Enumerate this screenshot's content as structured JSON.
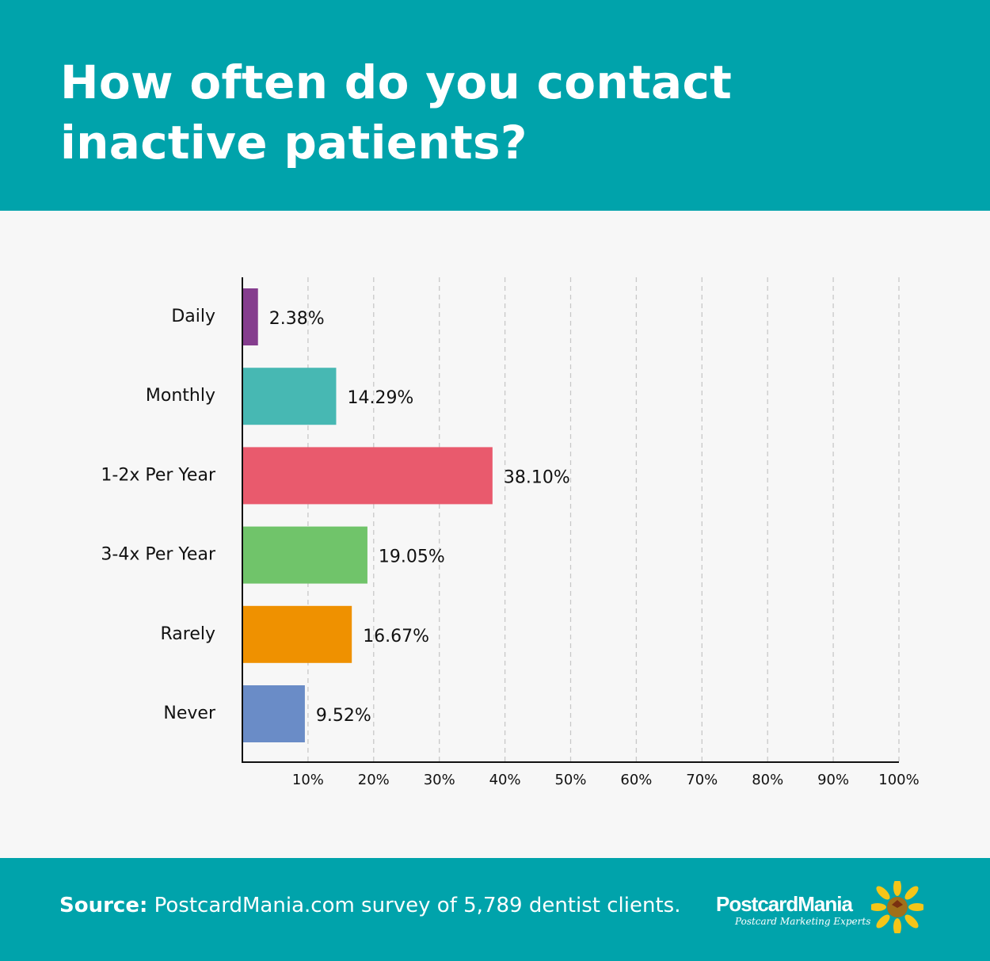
{
  "header": {
    "title": "How often do you contact inactive patients?"
  },
  "chart_data": {
    "type": "bar",
    "orientation": "horizontal",
    "title": "How often do you contact inactive patients?",
    "categories": [
      "Daily",
      "Monthly",
      "1-2x Per Year",
      "3-4x Per Year",
      "Rarely",
      "Never"
    ],
    "values": [
      2.38,
      14.29,
      38.1,
      19.05,
      16.67,
      9.52
    ],
    "data_labels": [
      "2.38%",
      "14.29%",
      "38.10%",
      "19.05%",
      "16.67%",
      "9.52%"
    ],
    "colors": [
      "#853d8e",
      "#47b8b3",
      "#e95a6d",
      "#70c46a",
      "#ef9100",
      "#6a8cc7"
    ],
    "xlim": [
      0,
      100
    ],
    "x_ticks": [
      10,
      20,
      30,
      40,
      50,
      60,
      70,
      80,
      90,
      100
    ],
    "x_tick_labels": [
      "10%",
      "20%",
      "30%",
      "40%",
      "50%",
      "60%",
      "70%",
      "80%",
      "90%",
      "100%"
    ],
    "grid": "vertical dashed",
    "xlabel": "",
    "ylabel": ""
  },
  "footer": {
    "source_label": "Source:",
    "source_text": " PostcardMania.com survey of 5,789 dentist clients.",
    "logo_name": "PostcardMania",
    "logo_tagline": "Postcard Marketing Experts"
  },
  "colors": {
    "brand": "#00a3ab",
    "background": "#f7f7f7"
  }
}
